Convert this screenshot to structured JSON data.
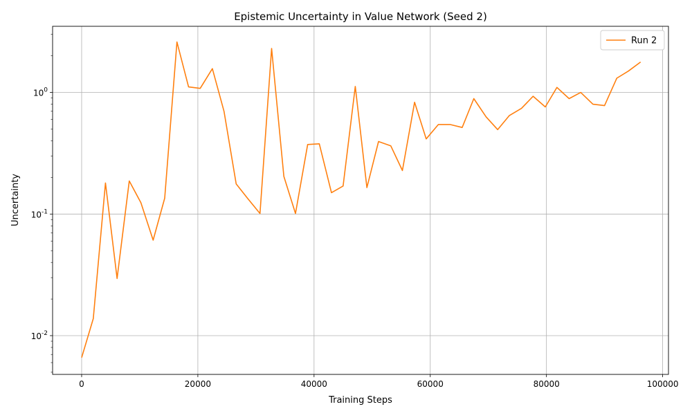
{
  "chart_data": {
    "type": "line",
    "title": "Epistemic Uncertainty in Value Network (Seed 2)",
    "xlabel": "Training Steps",
    "ylabel": "Uncertainty",
    "xlim": [
      -5000,
      101000
    ],
    "ylim": [
      0.0048,
      3.5
    ],
    "y_scale": "log",
    "grid": true,
    "legend_position": "top-right",
    "x_ticks": [
      0,
      20000,
      40000,
      60000,
      80000,
      100000
    ],
    "x_tick_labels": [
      "0",
      "20000",
      "40000",
      "60000",
      "80000",
      "100000"
    ],
    "y_ticks": [
      0.01,
      0.1,
      1
    ],
    "y_tick_labels": [
      "10^-2",
      "10^-1",
      "10^0"
    ],
    "series": [
      {
        "name": "Run 2",
        "color": "#ff7f0e",
        "x": [
          0,
          2000,
          4100,
          6100,
          8200,
          10200,
          12300,
          14300,
          16400,
          18400,
          20400,
          22500,
          24500,
          26600,
          28600,
          30700,
          32700,
          34800,
          36800,
          38900,
          40900,
          43000,
          45000,
          47100,
          49100,
          51100,
          53200,
          55200,
          57300,
          59300,
          61400,
          63400,
          65500,
          67500,
          69600,
          71600,
          73600,
          75700,
          77700,
          79800,
          81800,
          83900,
          85900,
          88000,
          90000,
          92100,
          94100,
          96200
        ],
        "y": [
          0.0066,
          0.0138,
          0.18,
          0.0295,
          0.187,
          0.124,
          0.061,
          0.135,
          2.6,
          1.11,
          1.08,
          1.57,
          0.7,
          0.177,
          0.134,
          0.101,
          2.3,
          0.204,
          0.101,
          0.373,
          0.378,
          0.15,
          0.17,
          1.12,
          0.165,
          0.395,
          0.364,
          0.228,
          0.83,
          0.415,
          0.545,
          0.545,
          0.515,
          0.89,
          0.63,
          0.495,
          0.645,
          0.74,
          0.93,
          0.76,
          1.1,
          0.89,
          1.0,
          0.8,
          0.78,
          1.31,
          1.5,
          1.78
        ]
      }
    ]
  }
}
